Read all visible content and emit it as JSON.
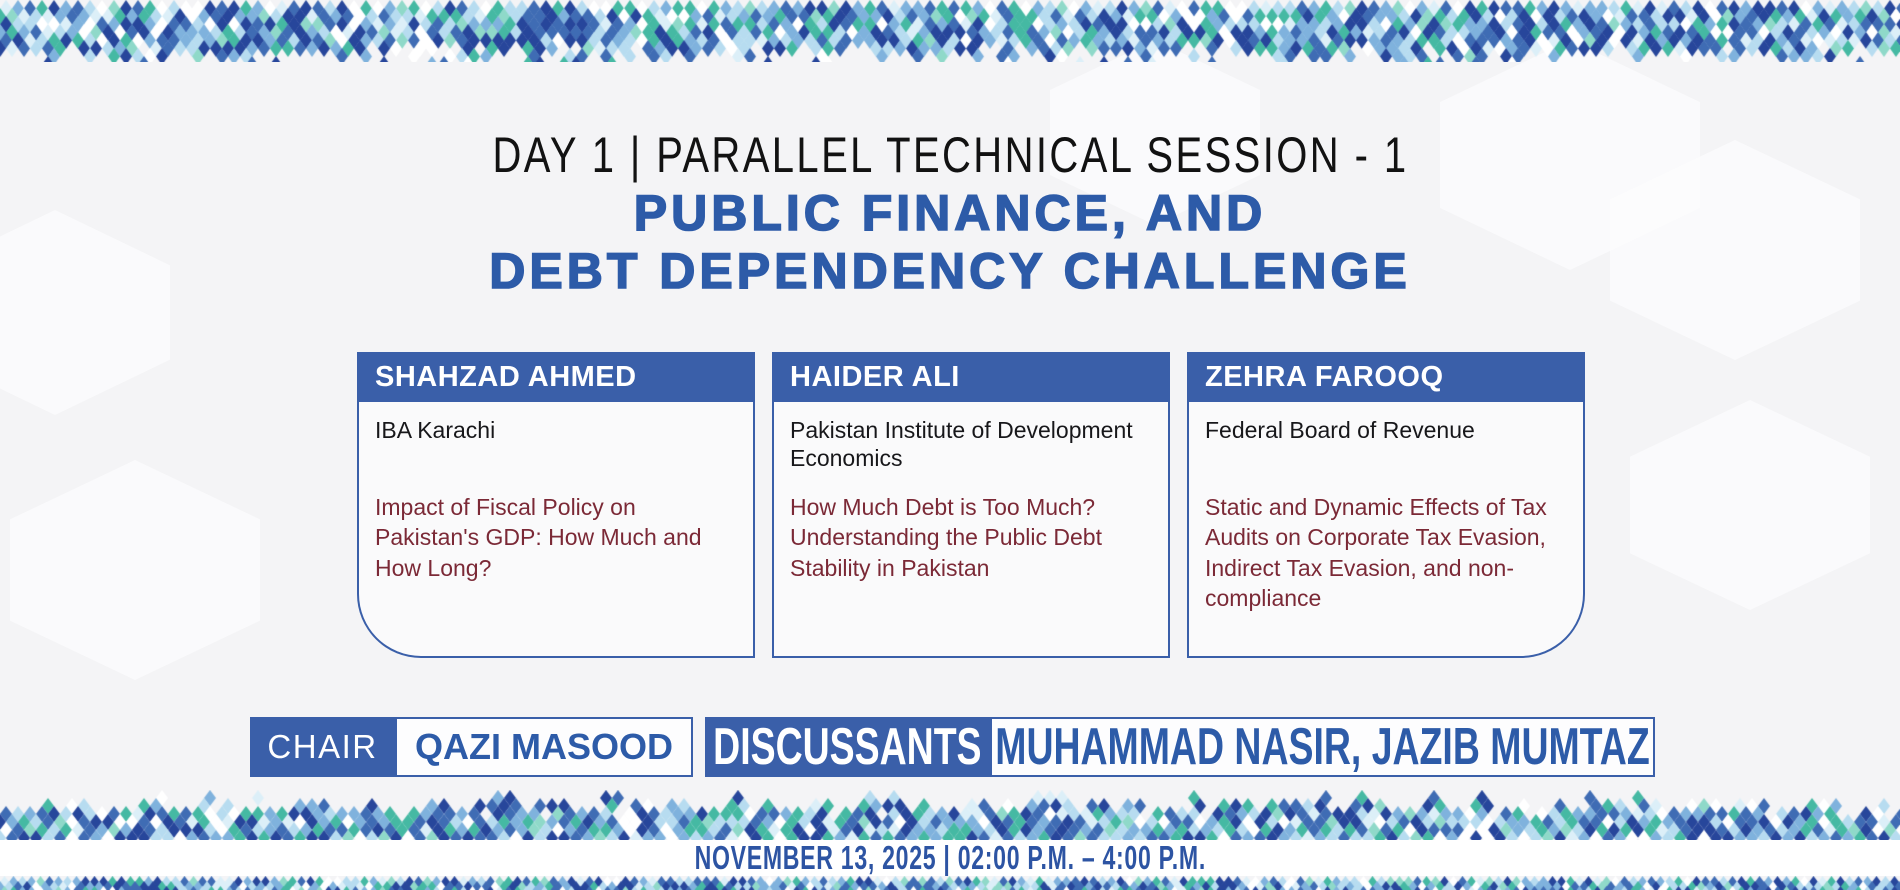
{
  "session": {
    "day_label": "DAY 1 | PARALLEL TECHNICAL SESSION - 1",
    "title_line1": "PUBLIC FINANCE, AND",
    "title_line2": "DEBT DEPENDENCY CHALLENGE"
  },
  "speakers": [
    {
      "name": "SHAHZAD AHMED",
      "affiliation": "IBA Karachi",
      "paper": "Impact of Fiscal Policy on Pakistan's GDP: How Much and How Long?"
    },
    {
      "name": "HAIDER ALI",
      "affiliation": "Pakistan Institute of Development Economics",
      "paper": "How Much Debt is Too Much? Understanding the Public Debt Stability in Pakistan"
    },
    {
      "name": "ZEHRA FAROOQ",
      "affiliation": "Federal Board of Revenue",
      "paper": "Static and Dynamic Effects of Tax Audits on Corporate Tax Evasion, Indirect Tax Evasion, and non-compliance"
    }
  ],
  "panel": {
    "chair_label": "CHAIR",
    "chair_name": "QAZI MASOOD",
    "discussants_label": "DISCUSSANTS",
    "discussants_names": "MUHAMMAD NASIR, JAZIB MUMTAZ"
  },
  "schedule": {
    "datetime": "NOVEMBER 13, 2025 | 02:00 P.M. – 4:00 P.M."
  },
  "colors": {
    "accent_blue": "#3a5fa9",
    "title_blue": "#2d5ba8",
    "paper_maroon": "#7b2936",
    "text_dark": "#17171a",
    "date_blue": "#2d54a3",
    "background": "#f4f4f6",
    "mosaic_palette": [
      "#27469b",
      "#3f6cb4",
      "#7fb2dd",
      "#b7dcf0",
      "#dceff8",
      "#45b9a3",
      "#8fd9c9",
      "#ffffff"
    ]
  }
}
